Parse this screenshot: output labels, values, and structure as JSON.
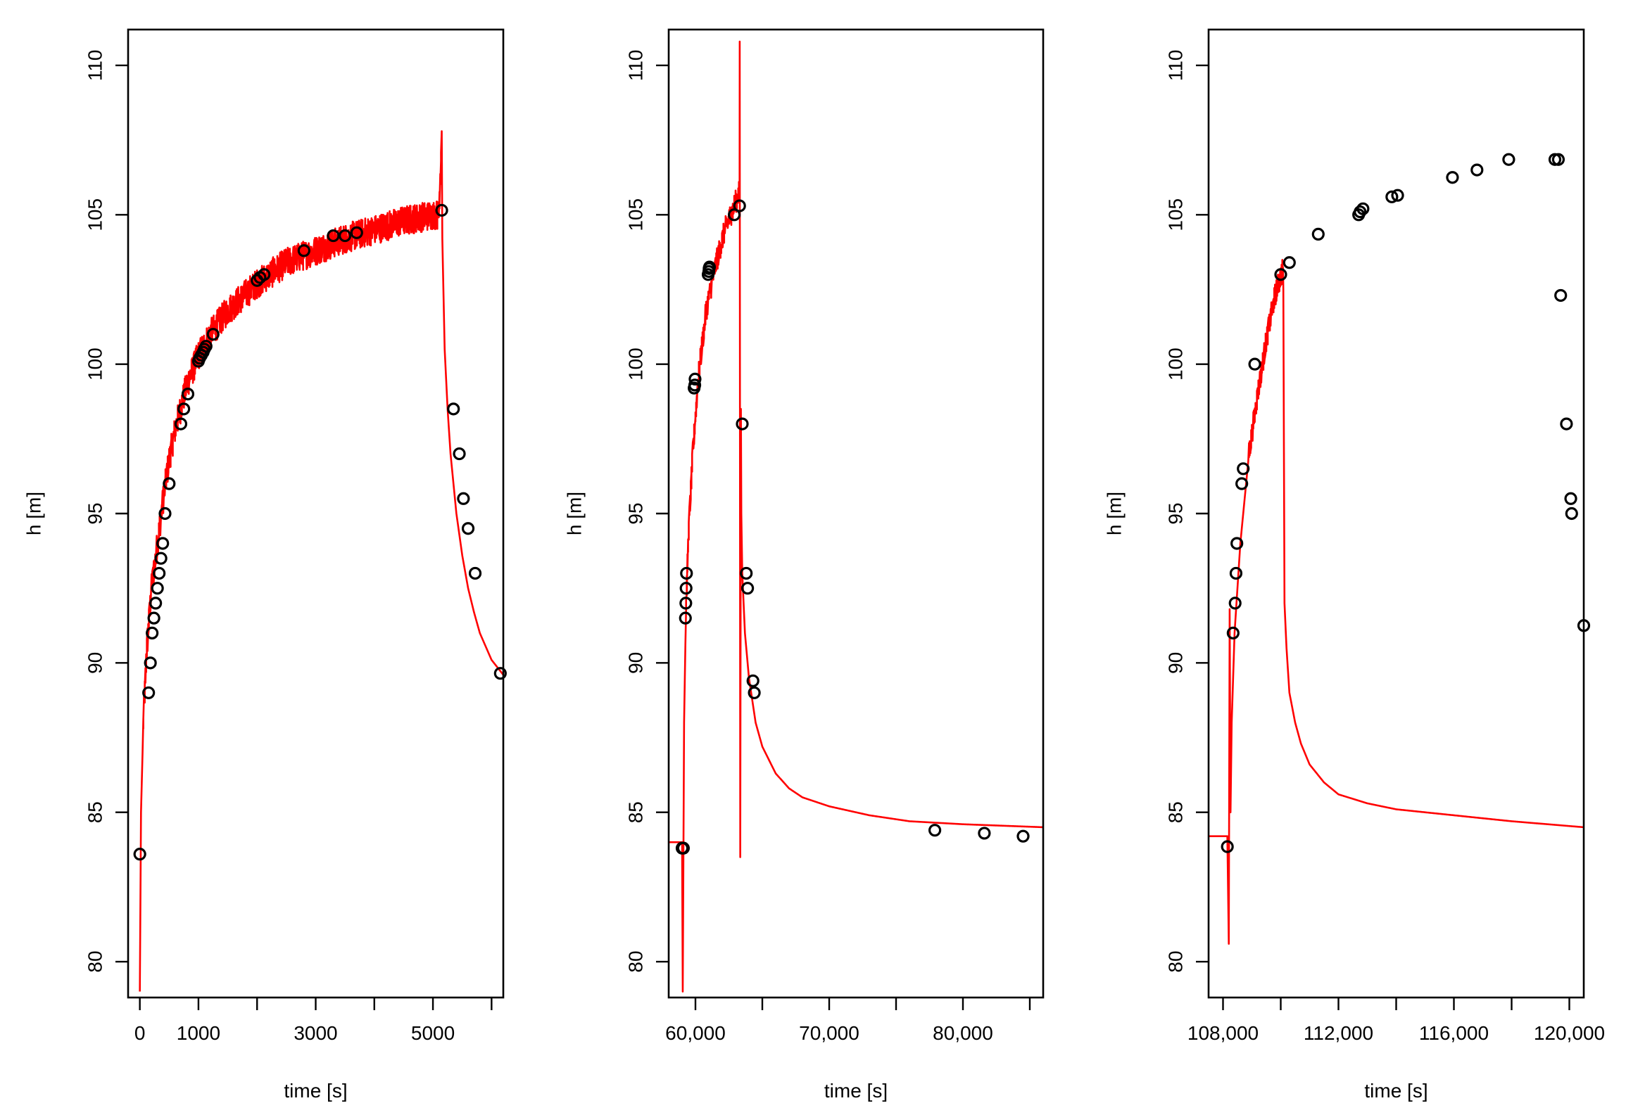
{
  "chart_data": [
    {
      "type": "scatter",
      "title": "",
      "xlabel": "time [s]",
      "ylabel": "h [m]",
      "xlim": [
        -200,
        6200
      ],
      "ylim": [
        78.8,
        111.2
      ],
      "xticks": [
        0,
        1000,
        3000,
        5000
      ],
      "xtick_labels": [
        "0",
        "1000",
        "3000",
        "5000"
      ],
      "xticks_minor": [
        2000,
        4000,
        6000
      ],
      "yticks": [
        80,
        85,
        90,
        95,
        100,
        105,
        110
      ],
      "ytick_labels": [
        "80",
        "85",
        "90",
        "95",
        "100",
        "105",
        "110"
      ],
      "observed": {
        "color": "#000000",
        "x": [
          0,
          150,
          180,
          210,
          240,
          270,
          300,
          330,
          360,
          390,
          430,
          500,
          700,
          750,
          820,
          1000,
          1020,
          1050,
          1080,
          1100,
          1130,
          1250,
          2000,
          2050,
          2120,
          2800,
          3300,
          3500,
          3700,
          5150,
          5350,
          5450,
          5520,
          5600,
          5720,
          6150
        ],
        "y": [
          83.6,
          89,
          90,
          91,
          91.5,
          92,
          92.5,
          93,
          93.5,
          94,
          95,
          96,
          98,
          98.5,
          99,
          100.1,
          100.2,
          100.3,
          100.4,
          100.5,
          100.6,
          101,
          102.8,
          102.9,
          103,
          103.8,
          104.3,
          104.3,
          104.4,
          105.15,
          98.5,
          97,
          95.5,
          94.5,
          93,
          89.65
        ]
      },
      "simulated": {
        "color": "#ff0000",
        "noise": 0.5,
        "x": [
          0,
          20,
          60,
          120,
          200,
          300,
          400,
          500,
          600,
          800,
          1000,
          1200,
          1500,
          2000,
          2500,
          3000,
          3500,
          4000,
          4500,
          5000,
          5100,
          5150,
          5160,
          5200,
          5250,
          5300,
          5400,
          5500,
          5600,
          5700,
          5800,
          6000,
          6200
        ],
        "y": [
          79,
          85,
          88,
          90.5,
          92.5,
          94,
          95.5,
          96.8,
          97.8,
          99.3,
          100.3,
          101,
          101.8,
          102.7,
          103.4,
          103.8,
          104.2,
          104.5,
          104.8,
          105,
          105,
          107.8,
          104.2,
          100.5,
          98.5,
          97,
          95,
          93.6,
          92.5,
          91.7,
          91,
          90.1,
          89.6
        ]
      }
    },
    {
      "type": "scatter",
      "title": "",
      "xlabel": "time [s]",
      "ylabel": "h [m]",
      "xlim": [
        58000,
        86000
      ],
      "ylim": [
        78.8,
        111.2
      ],
      "xticks": [
        60000,
        70000,
        80000
      ],
      "xtick_labels": [
        "60,000",
        "70,000",
        "80,000"
      ],
      "xticks_minor": [
        65000,
        75000,
        85000
      ],
      "yticks": [
        80,
        85,
        90,
        95,
        100,
        105,
        110
      ],
      "ytick_labels": [
        "80",
        "85",
        "90",
        "95",
        "100",
        "105",
        "110"
      ],
      "observed": {
        "color": "#000000",
        "x": [
          59000,
          59100,
          59250,
          59280,
          59300,
          59330,
          59900,
          59950,
          59970,
          60950,
          61000,
          61020,
          61050,
          62900,
          63300,
          63500,
          63800,
          63900,
          64300,
          64400,
          77900,
          81600,
          84500
        ],
        "y": [
          83.8,
          83.8,
          91.5,
          92,
          92.5,
          93,
          99.2,
          99.3,
          99.5,
          103,
          103.1,
          103.2,
          103.25,
          105,
          105.3,
          98,
          93,
          92.5,
          89.4,
          89,
          84.4,
          84.3,
          84.2
        ],
        "line_x": [
          58000,
          59000,
          59050,
          59150,
          59300,
          59500,
          59800,
          60200,
          60800,
          61500,
          62200,
          62900,
          63300,
          63310,
          63350,
          63400,
          63430,
          63500,
          63700,
          64000,
          64500,
          65000,
          66000,
          67000,
          68000,
          70000,
          73000,
          76000,
          80000,
          86000
        ],
        "line_y": [
          84,
          84,
          79,
          88,
          92,
          94.5,
          97,
          99.5,
          101.8,
          103.3,
          104.5,
          105.3,
          105.8,
          110.8,
          83.5,
          98.5,
          95,
          93,
          91,
          89.5,
          88,
          87.2,
          86.3,
          85.8,
          85.5,
          85.2,
          84.9,
          84.7,
          84.6,
          84.5
        ]
      },
      "simulated": {
        "color": "#ff0000",
        "noise": 0.4,
        "x": [
          58000,
          59000,
          59050,
          59150,
          59300,
          59500,
          59800,
          60200,
          60800,
          61500,
          62200,
          62900,
          63300,
          63310,
          63350,
          63400,
          63430,
          63500,
          63700,
          64000,
          64500,
          65000,
          66000,
          67000,
          68000,
          70000,
          73000,
          76000,
          80000,
          86000
        ],
        "y": [
          84,
          84,
          79,
          88,
          92,
          94.5,
          97,
          99.5,
          101.8,
          103.3,
          104.5,
          105.3,
          105.8,
          110.8,
          83.5,
          98.5,
          95,
          93,
          91,
          89.5,
          88,
          87.2,
          86.3,
          85.8,
          85.5,
          85.2,
          84.9,
          84.7,
          84.6,
          84.5
        ]
      }
    },
    {
      "type": "scatter",
      "title": "",
      "xlabel": "time [s]",
      "ylabel": "h [m]",
      "xlim": [
        107500,
        120500
      ],
      "ylim": [
        78.8,
        111.2
      ],
      "xticks": [
        108000,
        112000,
        116000,
        120000
      ],
      "xtick_labels": [
        "108,000",
        "112,000",
        "116,000",
        "120,000"
      ],
      "xticks_minor": [
        110000,
        114000,
        118000
      ],
      "yticks": [
        80,
        85,
        90,
        95,
        100,
        105,
        110
      ],
      "ytick_labels": [
        "80",
        "85",
        "90",
        "95",
        "100",
        "105",
        "110"
      ],
      "observed": {
        "color": "#000000",
        "x": [
          108150,
          108350,
          108420,
          108450,
          108480,
          108650,
          108700,
          109100,
          110000,
          110300,
          111300,
          112700,
          112750,
          112850,
          113850,
          114050,
          115950,
          116800,
          117900,
          119500,
          119620,
          119700,
          119900,
          120050,
          120080,
          120500
        ],
        "y": [
          83.85,
          91,
          92,
          93,
          94,
          96,
          96.5,
          100,
          103,
          103.4,
          104.35,
          105,
          105.1,
          105.2,
          105.6,
          105.65,
          106.25,
          106.5,
          106.85,
          106.85,
          106.85,
          102.3,
          98,
          95.5,
          95,
          91.25
        ]
      },
      "simulated": {
        "color": "#ff0000",
        "noise": 0.4,
        "x": [
          107500,
          108150,
          108200,
          108230,
          108260,
          108300,
          108400,
          108600,
          108900,
          109200,
          109500,
          109800,
          110080,
          110090,
          110130,
          110200,
          110300,
          110500,
          110700,
          111000,
          111500,
          112000,
          113000,
          114000,
          116000,
          118000,
          120500
        ],
        "y": [
          84.2,
          84.2,
          80.6,
          91.8,
          85,
          88,
          91,
          94,
          97,
          99,
          100.8,
          102.3,
          103.2,
          102.5,
          92,
          90.5,
          89,
          88,
          87.3,
          86.6,
          86,
          85.6,
          85.3,
          85.1,
          84.9,
          84.7,
          84.5
        ]
      }
    }
  ]
}
